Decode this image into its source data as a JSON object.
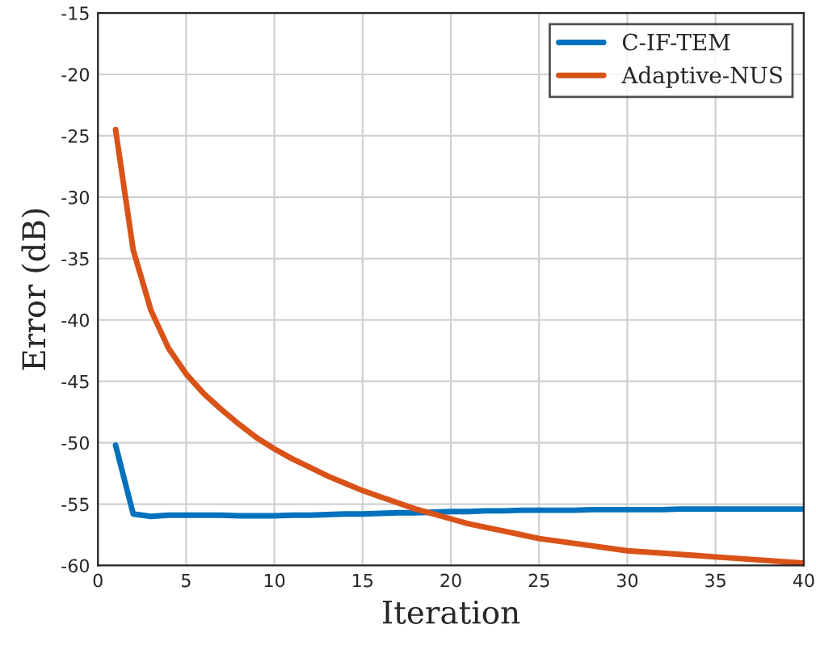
{
  "chart_data": {
    "type": "line",
    "xlabel": "Iteration",
    "ylabel": "Error (dB)",
    "x": [
      1,
      2,
      3,
      4,
      5,
      6,
      7,
      8,
      9,
      10,
      11,
      12,
      13,
      14,
      15,
      16,
      17,
      18,
      19,
      20,
      21,
      22,
      23,
      24,
      25,
      26,
      27,
      28,
      29,
      30,
      31,
      32,
      33,
      34,
      35,
      36,
      37,
      38,
      39,
      40
    ],
    "series": [
      {
        "name": "C-IF-TEM",
        "color": "#0072bd",
        "values": [
          -50.2,
          -55.8,
          -56.0,
          -55.9,
          -55.9,
          -55.9,
          -55.9,
          -55.95,
          -55.95,
          -55.95,
          -55.9,
          -55.9,
          -55.85,
          -55.8,
          -55.8,
          -55.75,
          -55.7,
          -55.7,
          -55.65,
          -55.6,
          -55.6,
          -55.55,
          -55.55,
          -55.5,
          -55.5,
          -55.5,
          -55.5,
          -55.45,
          -55.45,
          -55.45,
          -55.45,
          -55.45,
          -55.4,
          -55.4,
          -55.4,
          -55.4,
          -55.4,
          -55.4,
          -55.4,
          -55.4
        ]
      },
      {
        "name": "Adaptive-NUS",
        "color": "#d95319",
        "values": [
          -24.5,
          -34.3,
          -39.2,
          -42.3,
          -44.4,
          -46.0,
          -47.3,
          -48.5,
          -49.6,
          -50.5,
          -51.3,
          -52.0,
          -52.7,
          -53.3,
          -53.9,
          -54.4,
          -54.9,
          -55.4,
          -55.8,
          -56.2,
          -56.6,
          -56.9,
          -57.2,
          -57.5,
          -57.8,
          -58.0,
          -58.2,
          -58.4,
          -58.6,
          -58.8,
          -58.9,
          -59.0,
          -59.1,
          -59.2,
          -59.3,
          -59.4,
          -59.5,
          -59.6,
          -59.7,
          -59.8
        ]
      }
    ],
    "xlim": [
      0,
      40
    ],
    "xticks": [
      0,
      5,
      10,
      15,
      20,
      25,
      30,
      35,
      40
    ],
    "ylim": [
      -60,
      -15
    ],
    "yticks": [
      -60,
      -55,
      -50,
      -45,
      -40,
      -35,
      -30,
      -25,
      -20,
      -15
    ],
    "grid": true,
    "legend": "top right"
  }
}
